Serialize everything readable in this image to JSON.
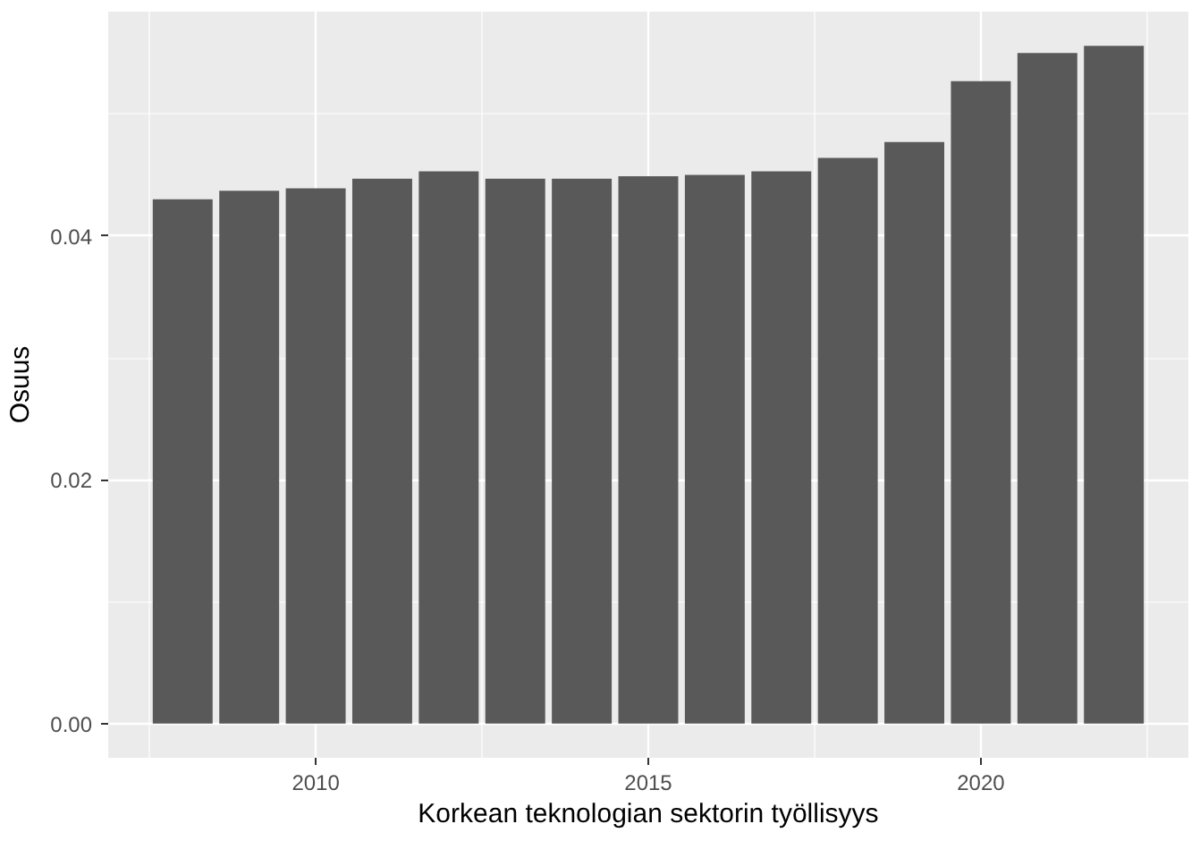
{
  "chart_data": {
    "type": "bar",
    "xlabel": "Korkean teknologian sektorin työllisyys",
    "ylabel": "Osuus",
    "x": [
      2008,
      2009,
      2010,
      2011,
      2012,
      2013,
      2014,
      2015,
      2016,
      2017,
      2018,
      2019,
      2020,
      2021,
      2022
    ],
    "values": [
      0.043,
      0.0437,
      0.0439,
      0.0447,
      0.0453,
      0.0447,
      0.0447,
      0.0449,
      0.045,
      0.0453,
      0.0464,
      0.0477,
      0.0527,
      0.055,
      0.0556
    ],
    "color": "#595959",
    "xlim": [
      2006.88,
      2023.12
    ],
    "ylim": [
      -0.0028,
      0.0584
    ],
    "xticks": [
      2010,
      2015,
      2020
    ],
    "yticks": [
      {
        "value": 0,
        "label": "0.00"
      },
      {
        "value": 0.02,
        "label": "0.02"
      },
      {
        "value": 0.04,
        "label": "0.04"
      }
    ],
    "grid": true
  }
}
